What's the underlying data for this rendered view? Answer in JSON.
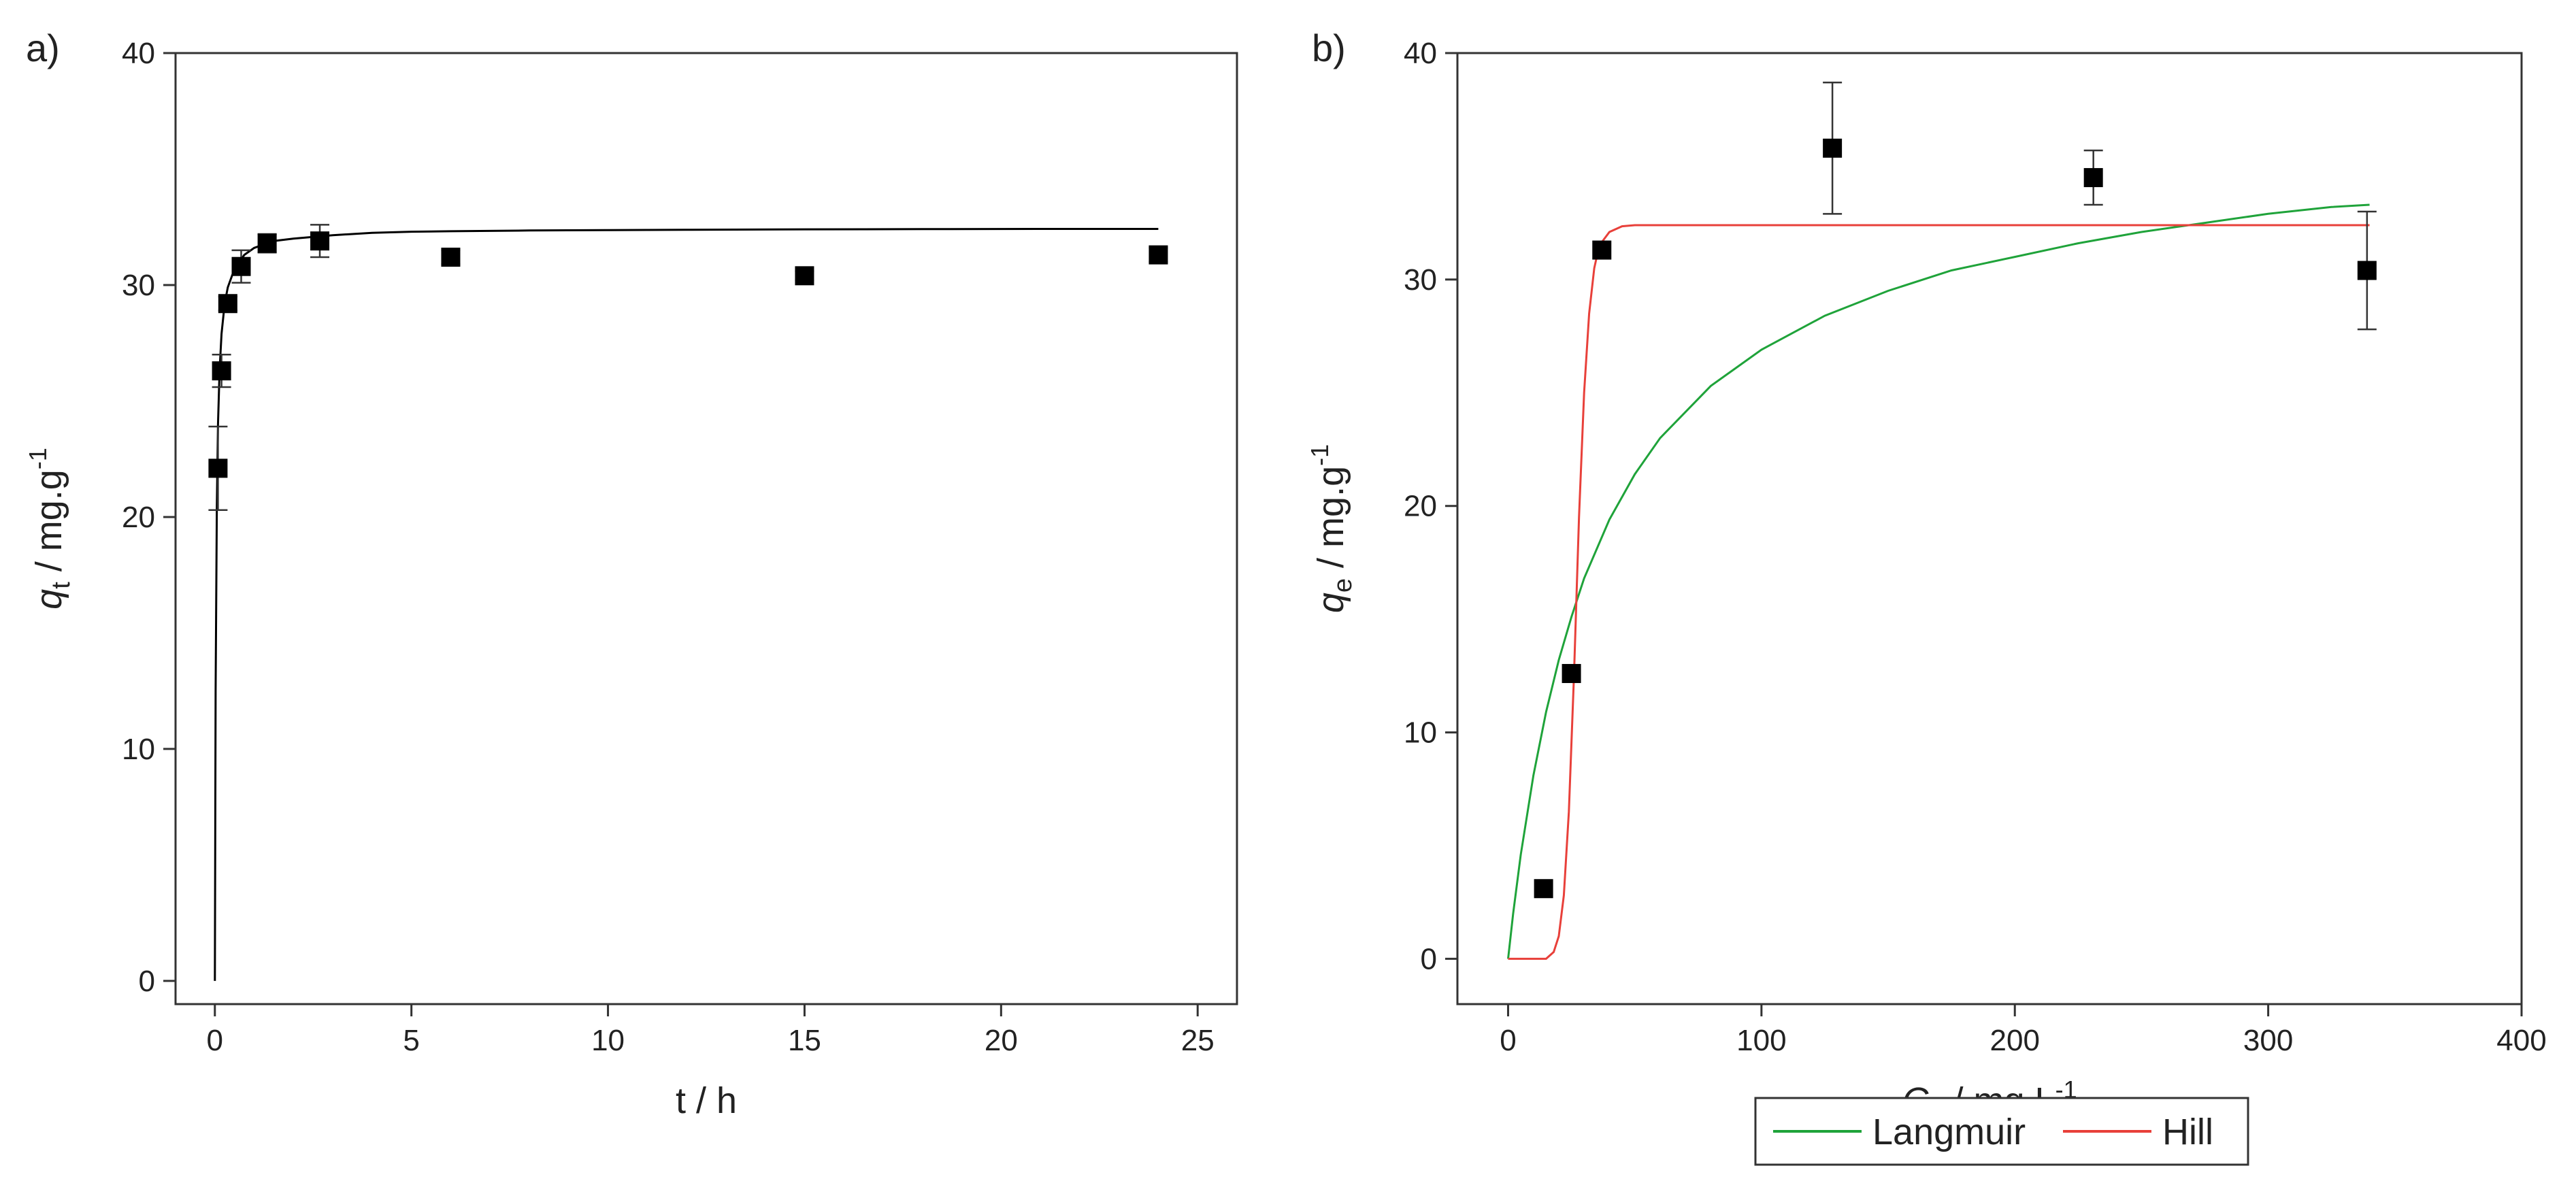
{
  "chart_data": [
    {
      "type": "scatter",
      "panel_label": "a)",
      "xlabel": "t / h",
      "ylabel_main": "q",
      "ylabel_sub": "t",
      "ylabel_unit": " / mg.g",
      "ylabel_sup": "-1",
      "xlim": [
        -1,
        26
      ],
      "ylim": [
        -1,
        40
      ],
      "xticks": [
        0,
        5,
        10,
        15,
        20,
        25
      ],
      "yticks": [
        0,
        10,
        20,
        30,
        40
      ],
      "grid": false,
      "series": [
        {
          "kind": "points",
          "color": "#000000",
          "x": [
            0.08,
            0.17,
            0.33,
            0.67,
            1.33,
            2.67,
            6,
            15,
            24
          ],
          "y": [
            22.1,
            26.3,
            29.2,
            30.8,
            31.8,
            31.9,
            31.2,
            30.4,
            31.3
          ],
          "err": [
            1.8,
            0.7,
            0.3,
            0.7,
            0.4,
            0.7,
            0.3,
            0.2,
            0.3
          ]
        },
        {
          "kind": "line",
          "color": "#000000",
          "x": [
            0,
            0.02,
            0.05,
            0.08,
            0.12,
            0.17,
            0.25,
            0.33,
            0.5,
            0.75,
            1,
            1.5,
            2,
            3,
            4,
            5,
            6,
            8,
            10,
            12,
            15,
            18,
            21,
            24
          ],
          "y": [
            0,
            12.5,
            20.5,
            24.0,
            26.3,
            27.9,
            29.2,
            29.9,
            30.7,
            31.3,
            31.6,
            31.9,
            32.0,
            32.15,
            32.25,
            32.3,
            32.32,
            32.35,
            32.37,
            32.38,
            32.4,
            32.41,
            32.42,
            32.42
          ]
        }
      ]
    },
    {
      "type": "scatter",
      "panel_label": "b)",
      "xlabel_main": "C",
      "xlabel_sub": "e",
      "xlabel_unit": " / mg.L",
      "xlabel_sup": "-1",
      "ylabel_main": "q",
      "ylabel_sub": "e",
      "ylabel_unit": " / mg.g",
      "ylabel_sup": "-1",
      "xlim": [
        -20,
        400
      ],
      "ylim": [
        -2,
        40
      ],
      "xticks": [
        0,
        100,
        200,
        300,
        400
      ],
      "yticks": [
        0,
        10,
        20,
        30,
        40
      ],
      "grid": false,
      "legend_position": "bottom",
      "series": [
        {
          "kind": "points",
          "color": "#000000",
          "x": [
            14,
            25,
            37,
            128,
            231,
            339
          ],
          "y": [
            3.1,
            12.6,
            31.3,
            35.8,
            34.5,
            30.4
          ],
          "err": [
            0,
            0,
            0,
            2.9,
            1.2,
            2.6
          ]
        },
        {
          "kind": "line",
          "name": "Langmuir",
          "color": "#1fa33a",
          "x": [
            0,
            2,
            5,
            10,
            15,
            20,
            25,
            30,
            40,
            50,
            60,
            80,
            100,
            125,
            150,
            175,
            200,
            225,
            250,
            275,
            300,
            325,
            340
          ],
          "y": [
            0,
            2.0,
            4.6,
            8.1,
            10.9,
            13.2,
            15.1,
            16.8,
            19.4,
            21.4,
            23.0,
            25.3,
            26.9,
            28.4,
            29.5,
            30.4,
            31.0,
            31.6,
            32.1,
            32.5,
            32.9,
            33.2,
            33.3
          ]
        },
        {
          "kind": "line",
          "name": "Hill",
          "color": "#e8403a",
          "x": [
            0,
            10,
            15,
            18,
            20,
            22,
            24,
            26,
            28,
            30,
            32,
            34,
            36,
            40,
            45,
            50,
            60,
            100,
            200,
            340
          ],
          "y": [
            0,
            0,
            0,
            0.3,
            1.0,
            2.8,
            6.5,
            12.5,
            19.5,
            25.0,
            28.5,
            30.5,
            31.5,
            32.1,
            32.35,
            32.4,
            32.4,
            32.4,
            32.4,
            32.4
          ]
        }
      ]
    }
  ]
}
